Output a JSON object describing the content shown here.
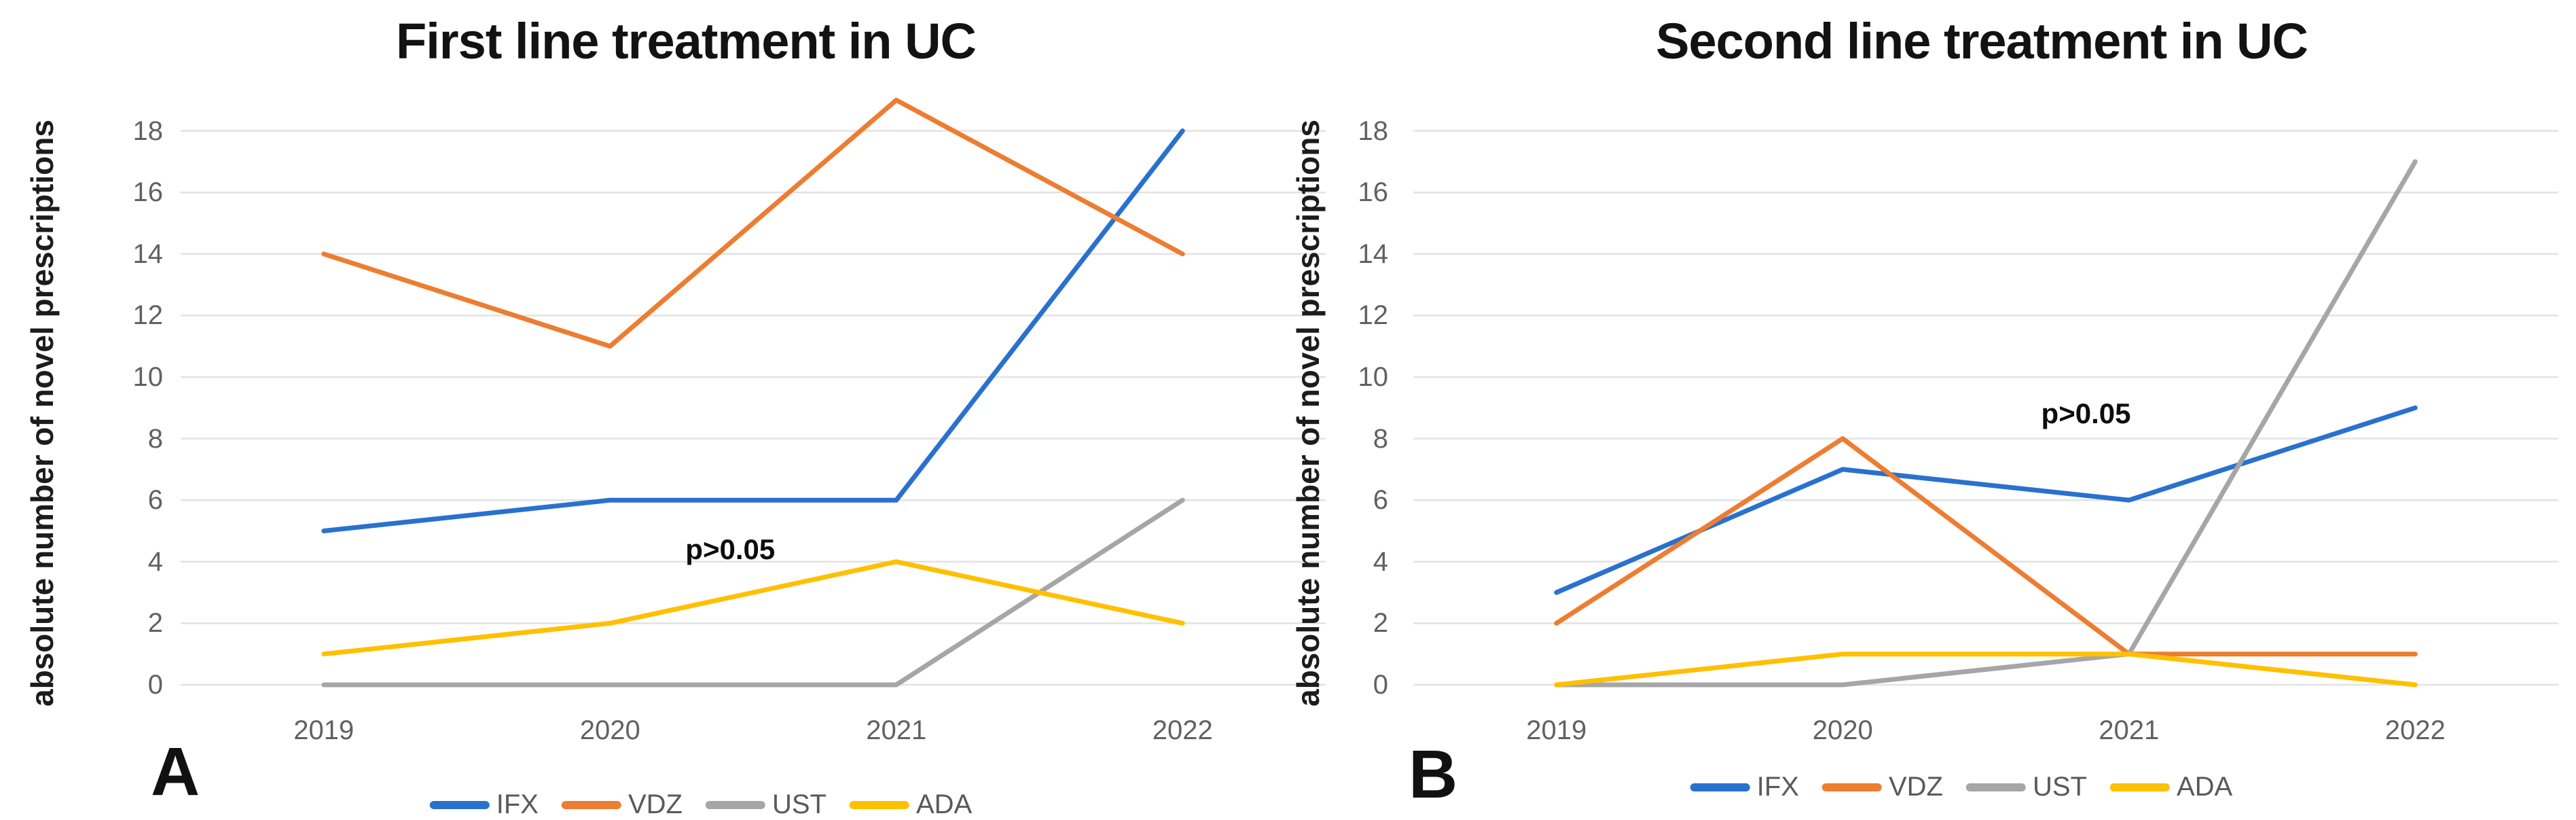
{
  "figure": {
    "panel_labels": [
      "A",
      "B"
    ]
  },
  "chart_data": [
    {
      "type": "line",
      "panel_label": "A",
      "title": "First line treatment in UC",
      "ylabel": "absolute number of novel prescriptions",
      "xlabel": "",
      "categories": [
        "2019",
        "2020",
        "2021",
        "2022"
      ],
      "series": [
        {
          "name": "IFX",
          "color": "#2971CE",
          "values": [
            5,
            6,
            6,
            18
          ]
        },
        {
          "name": "VDZ",
          "color": "#ED7D31",
          "values": [
            14,
            11,
            19,
            14
          ]
        },
        {
          "name": "UST",
          "color": "#A6A6A6",
          "values": [
            0,
            0,
            0,
            6
          ]
        },
        {
          "name": "ADA",
          "color": "#FFC000",
          "values": [
            1,
            2,
            4,
            2
          ]
        }
      ],
      "ylim": [
        0,
        18
      ],
      "ytick_step": 2,
      "grid": true,
      "legend_position": "bottom",
      "annotation": {
        "text": "p>0.05",
        "x": 1.42,
        "y": 4.4
      }
    },
    {
      "type": "line",
      "panel_label": "B",
      "title": "Second line treatment in UC",
      "ylabel": "absolute number of novel prescriptions",
      "xlabel": "",
      "categories": [
        "2019",
        "2020",
        "2021",
        "2022"
      ],
      "series": [
        {
          "name": "IFX",
          "color": "#2971CE",
          "values": [
            3,
            7,
            6,
            9
          ]
        },
        {
          "name": "VDZ",
          "color": "#ED7D31",
          "values": [
            2,
            8,
            1,
            1
          ]
        },
        {
          "name": "UST",
          "color": "#A6A6A6",
          "values": [
            0,
            0,
            1,
            17
          ]
        },
        {
          "name": "ADA",
          "color": "#FFC000",
          "values": [
            0,
            1,
            1,
            0
          ]
        }
      ],
      "ylim": [
        0,
        18
      ],
      "ytick_step": 2,
      "grid": true,
      "legend_position": "bottom",
      "annotation": {
        "text": "p>0.05",
        "x": 1.85,
        "y": 8.8
      }
    }
  ]
}
